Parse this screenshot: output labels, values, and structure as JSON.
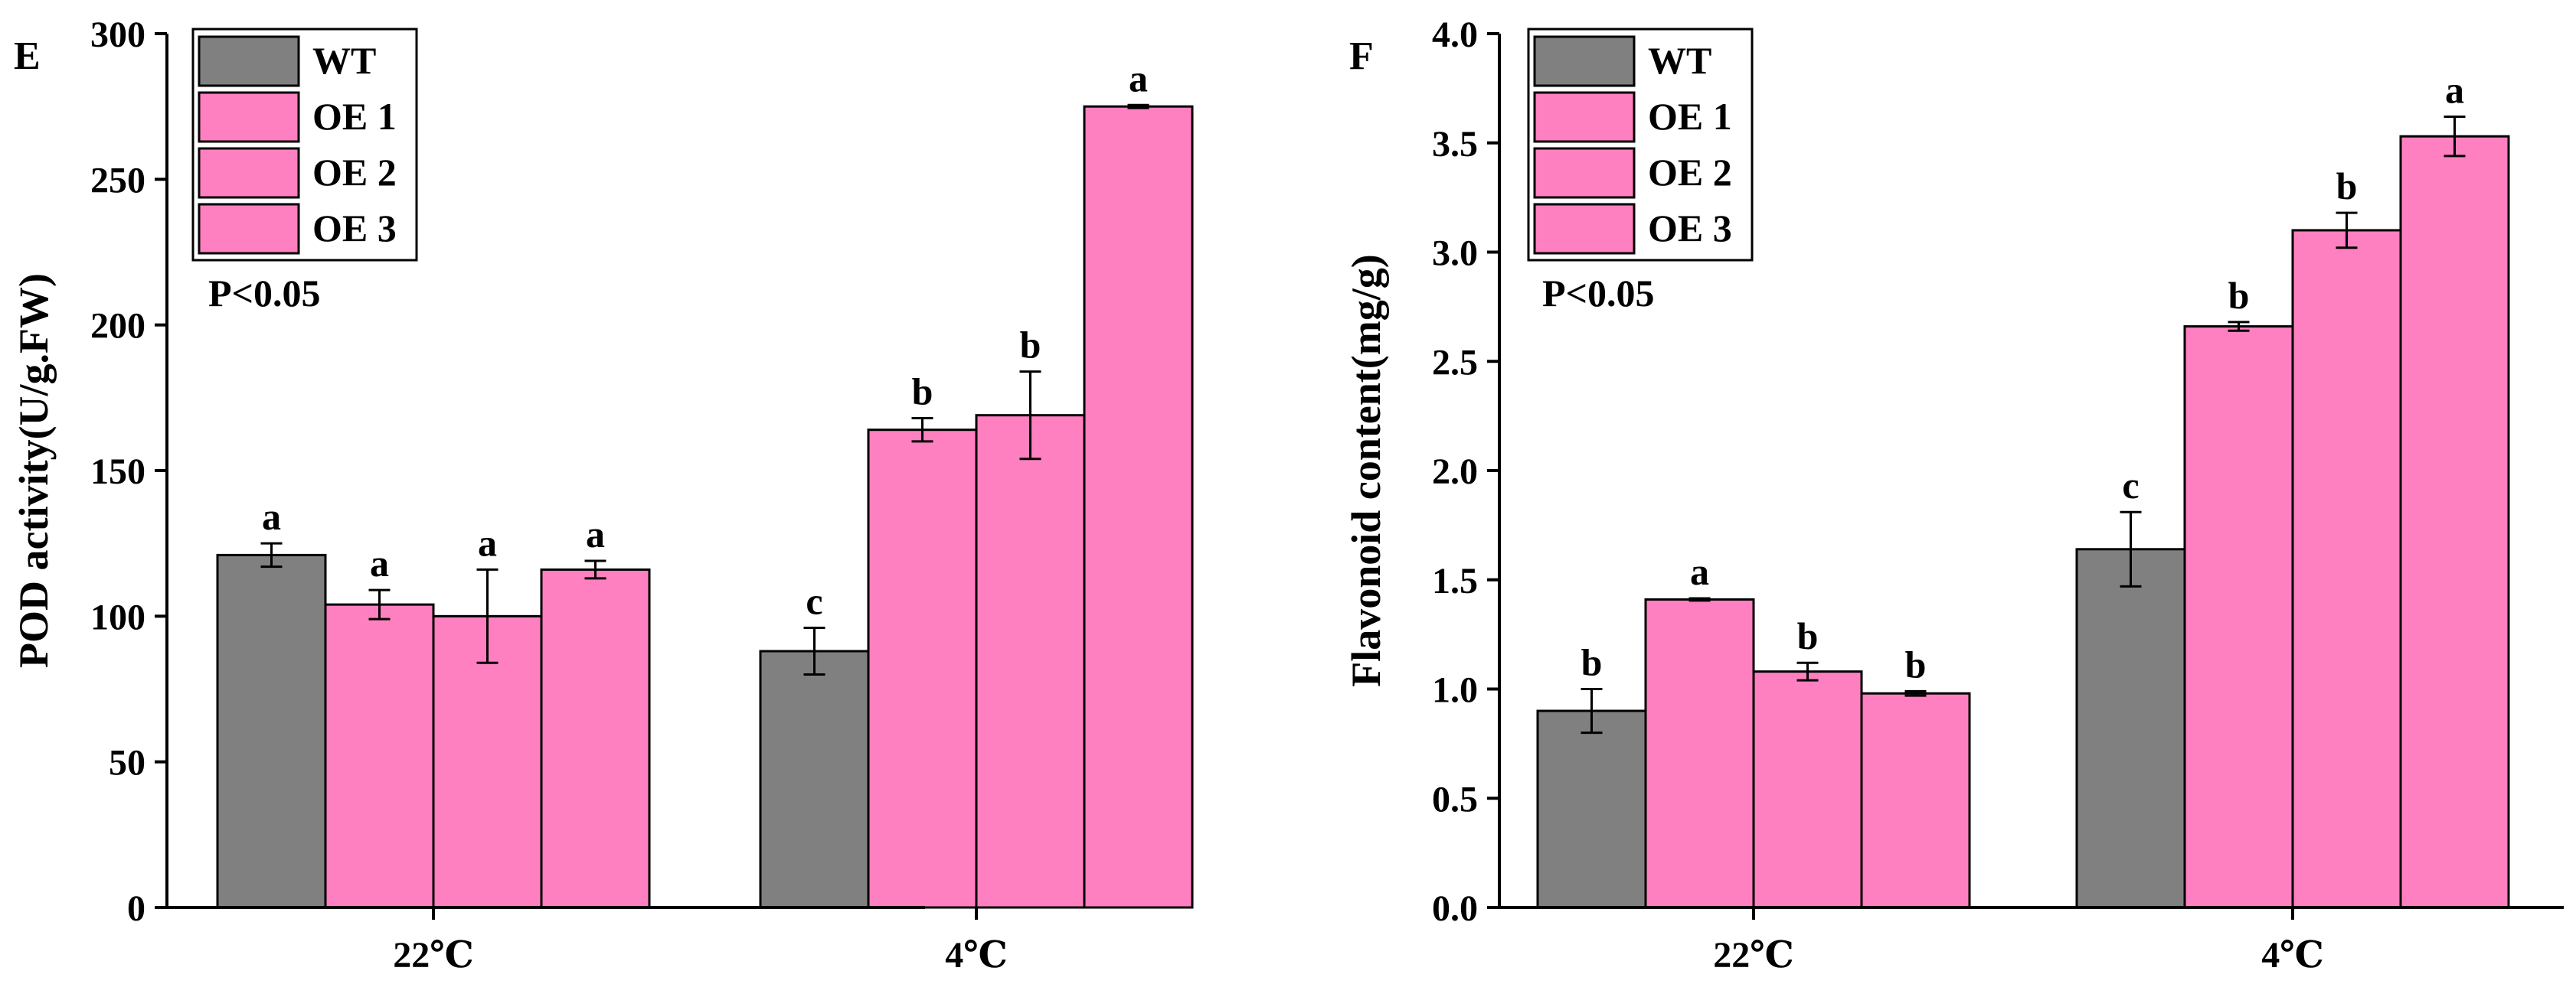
{
  "colors": {
    "wt": "#808080",
    "oe": "#ff80c0"
  },
  "chart_data": [
    {
      "type": "bar",
      "panel": "E",
      "ylabel": "POD activity(U/g.FW)",
      "xlabel": "",
      "ylim": [
        0,
        300
      ],
      "yticks": [
        0,
        50,
        100,
        150,
        200,
        250,
        300
      ],
      "categories": [
        "22℃",
        "4℃"
      ],
      "annotation": "P<0.05",
      "legend": [
        "WT",
        "OE 1",
        "OE 2",
        "OE 3"
      ],
      "legend_position": "top-left",
      "series": [
        {
          "name": "WT",
          "values": [
            121,
            88
          ],
          "errors": [
            4,
            8
          ],
          "letters": [
            "a",
            "c"
          ]
        },
        {
          "name": "OE 1",
          "values": [
            104,
            164
          ],
          "errors": [
            5,
            4
          ],
          "letters": [
            "a",
            "b"
          ]
        },
        {
          "name": "OE 2",
          "values": [
            100,
            169
          ],
          "errors": [
            16,
            15
          ],
          "letters": [
            "a",
            "b"
          ]
        },
        {
          "name": "OE 3",
          "values": [
            116,
            275
          ],
          "errors": [
            3,
            0.5
          ],
          "letters": [
            "a",
            "a"
          ]
        }
      ]
    },
    {
      "type": "bar",
      "panel": "F",
      "ylabel": "Flavonoid content(mg/g)",
      "xlabel": "",
      "ylim": [
        0,
        4.0
      ],
      "yticks": [
        "0.0",
        "0.5",
        "1.0",
        "1.5",
        "2.0",
        "2.5",
        "3.0",
        "3.5",
        "4.0"
      ],
      "categories": [
        "22℃",
        "4℃"
      ],
      "annotation": "P<0.05",
      "legend": [
        "WT",
        "OE 1",
        "OE 2",
        "OE 3"
      ],
      "legend_position": "top-left",
      "series": [
        {
          "name": "WT",
          "values": [
            0.9,
            1.64
          ],
          "errors": [
            0.1,
            0.17
          ],
          "letters": [
            "b",
            "c"
          ]
        },
        {
          "name": "OE 1",
          "values": [
            1.41,
            2.66
          ],
          "errors": [
            0.005,
            0.02
          ],
          "letters": [
            "a",
            "b"
          ]
        },
        {
          "name": "OE 2",
          "values": [
            1.08,
            3.1
          ],
          "errors": [
            0.04,
            0.08
          ],
          "letters": [
            "b",
            "b"
          ]
        },
        {
          "name": "OE 3",
          "values": [
            0.98,
            3.53
          ],
          "errors": [
            0.01,
            0.09
          ],
          "letters": [
            "b",
            "a"
          ]
        }
      ]
    }
  ]
}
